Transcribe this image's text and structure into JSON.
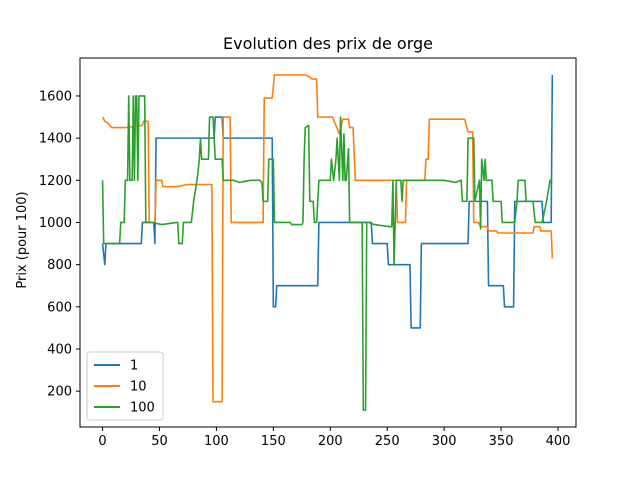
{
  "chart_data": {
    "type": "line",
    "title": "Evolution des prix de orge",
    "xlabel": "",
    "ylabel": "Prix (pour 100)",
    "xlim": [
      -19.8,
      415.8
    ],
    "ylim": [
      30,
      1780
    ],
    "xticks": [
      0,
      50,
      100,
      150,
      200,
      250,
      300,
      350,
      400
    ],
    "yticks": [
      200,
      400,
      600,
      800,
      1000,
      1200,
      1400,
      1600
    ],
    "grid": false,
    "legend_position": "lower-left",
    "series": [
      {
        "name": "1",
        "color": "#1f77b4",
        "points": [
          [
            0,
            900
          ],
          [
            1,
            850
          ],
          [
            2,
            800
          ],
          [
            3,
            900
          ],
          [
            20,
            900
          ],
          [
            34,
            900
          ],
          [
            35,
            1000
          ],
          [
            45,
            1000
          ],
          [
            46,
            900
          ],
          [
            47,
            1400
          ],
          [
            65,
            1400
          ],
          [
            98,
            1400
          ],
          [
            99,
            1500
          ],
          [
            105,
            1500
          ],
          [
            106,
            1400
          ],
          [
            130,
            1400
          ],
          [
            149,
            1400
          ],
          [
            150,
            600
          ],
          [
            152,
            600
          ],
          [
            153,
            700
          ],
          [
            175,
            700
          ],
          [
            189,
            700
          ],
          [
            190,
            1000
          ],
          [
            220,
            1000
          ],
          [
            236,
            1000
          ],
          [
            237,
            900
          ],
          [
            245,
            900
          ],
          [
            250,
            900
          ],
          [
            251,
            800
          ],
          [
            265,
            800
          ],
          [
            270,
            800
          ],
          [
            271,
            500
          ],
          [
            279,
            500
          ],
          [
            280,
            900
          ],
          [
            300,
            900
          ],
          [
            321,
            900
          ],
          [
            322,
            1100
          ],
          [
            335,
            1100
          ],
          [
            338,
            1100
          ],
          [
            339,
            700
          ],
          [
            352,
            700
          ],
          [
            353,
            600
          ],
          [
            360,
            600
          ],
          [
            361,
            600
          ],
          [
            362,
            1100
          ],
          [
            378,
            1100
          ],
          [
            386,
            1100
          ],
          [
            387,
            1000
          ],
          [
            394,
            1000
          ],
          [
            395,
            1700
          ]
        ]
      },
      {
        "name": "10",
        "color": "#ff7f0e",
        "points": [
          [
            0,
            1500
          ],
          [
            2,
            1480
          ],
          [
            5,
            1470
          ],
          [
            8,
            1450
          ],
          [
            20,
            1450
          ],
          [
            35,
            1460
          ],
          [
            36,
            1480
          ],
          [
            40,
            1480
          ],
          [
            41,
            1000
          ],
          [
            45,
            1000
          ],
          [
            46,
            1000
          ],
          [
            47,
            1200
          ],
          [
            52,
            1200
          ],
          [
            53,
            1170
          ],
          [
            65,
            1170
          ],
          [
            75,
            1180
          ],
          [
            94,
            1180
          ],
          [
            96,
            1180
          ],
          [
            97,
            150
          ],
          [
            105,
            150
          ],
          [
            106,
            1500
          ],
          [
            112,
            1500
          ],
          [
            113,
            1000
          ],
          [
            138,
            1000
          ],
          [
            141,
            1000
          ],
          [
            142,
            1590
          ],
          [
            149,
            1590
          ],
          [
            151,
            1700
          ],
          [
            178,
            1700
          ],
          [
            182,
            1690
          ],
          [
            184,
            1680
          ],
          [
            188,
            1680
          ],
          [
            189,
            1500
          ],
          [
            202,
            1500
          ],
          [
            208,
            1420
          ],
          [
            211,
            1490
          ],
          [
            216,
            1490
          ],
          [
            217,
            1450
          ],
          [
            220,
            1450
          ],
          [
            222,
            1200
          ],
          [
            258,
            1200
          ],
          [
            259,
            1000
          ],
          [
            266,
            1000
          ],
          [
            267,
            1200
          ],
          [
            283,
            1200
          ],
          [
            284,
            1300
          ],
          [
            286,
            1300
          ],
          [
            287,
            1490
          ],
          [
            318,
            1490
          ],
          [
            321,
            1430
          ],
          [
            325,
            1430
          ],
          [
            326,
            1000
          ],
          [
            330,
            1000
          ],
          [
            332,
            980
          ],
          [
            338,
            980
          ],
          [
            339,
            960
          ],
          [
            346,
            960
          ],
          [
            347,
            950
          ],
          [
            378,
            950
          ],
          [
            379,
            980
          ],
          [
            384,
            980
          ],
          [
            385,
            960
          ],
          [
            394,
            960
          ],
          [
            395,
            830
          ]
        ]
      },
      {
        "name": "100",
        "color": "#2ca02c",
        "points": [
          [
            0,
            1200
          ],
          [
            1,
            900
          ],
          [
            10,
            900
          ],
          [
            15,
            900
          ],
          [
            16,
            1000
          ],
          [
            19,
            1000
          ],
          [
            20,
            1200
          ],
          [
            22,
            1200
          ],
          [
            23,
            1600
          ],
          [
            24,
            1200
          ],
          [
            26,
            1200
          ],
          [
            27,
            1600
          ],
          [
            28,
            1200
          ],
          [
            29,
            1600
          ],
          [
            30,
            1600
          ],
          [
            31,
            1200
          ],
          [
            32,
            1600
          ],
          [
            37,
            1600
          ],
          [
            38,
            1000
          ],
          [
            43,
            1000
          ],
          [
            52,
            990
          ],
          [
            65,
            1000
          ],
          [
            66,
            1000
          ],
          [
            67,
            900
          ],
          [
            70,
            900
          ],
          [
            71,
            1000
          ],
          [
            75,
            1000
          ],
          [
            78,
            1000
          ],
          [
            80,
            1100
          ],
          [
            83,
            1200
          ],
          [
            85,
            1300
          ],
          [
            86,
            1400
          ],
          [
            87,
            1300
          ],
          [
            93,
            1300
          ],
          [
            94,
            1500
          ],
          [
            97,
            1500
          ],
          [
            99,
            1300
          ],
          [
            100,
            1300
          ],
          [
            104,
            1300
          ],
          [
            105,
            1300
          ],
          [
            106,
            1200
          ],
          [
            110,
            1200
          ],
          [
            115,
            1200
          ],
          [
            120,
            1190
          ],
          [
            130,
            1200
          ],
          [
            138,
            1200
          ],
          [
            140,
            1190
          ],
          [
            141,
            1100
          ],
          [
            145,
            1100
          ],
          [
            146,
            1300
          ],
          [
            150,
            1300
          ],
          [
            151,
            1000
          ],
          [
            165,
            1000
          ],
          [
            166,
            990
          ],
          [
            175,
            990
          ],
          [
            176,
            1000
          ],
          [
            177,
            1300
          ],
          [
            178,
            1450
          ],
          [
            181,
            1460
          ],
          [
            182,
            1100
          ],
          [
            185,
            1100
          ],
          [
            186,
            1000
          ],
          [
            188,
            1000
          ],
          [
            190,
            1200
          ],
          [
            200,
            1200
          ],
          [
            201,
            1300
          ],
          [
            203,
            1200
          ],
          [
            205,
            1300
          ],
          [
            206,
            1400
          ],
          [
            207,
            1300
          ],
          [
            208,
            1200
          ],
          [
            209,
            1500
          ],
          [
            211,
            1200
          ],
          [
            212,
            1420
          ],
          [
            213,
            1200
          ],
          [
            214,
            1200
          ],
          [
            216,
            1350
          ],
          [
            217,
            1000
          ],
          [
            224,
            1000
          ],
          [
            228,
            1000
          ],
          [
            229,
            110
          ],
          [
            231,
            110
          ],
          [
            232,
            1000
          ],
          [
            234,
            1000
          ],
          [
            239,
            990
          ],
          [
            252,
            980
          ],
          [
            254,
            980
          ],
          [
            255,
            1200
          ],
          [
            256,
            800
          ],
          [
            258,
            1200
          ],
          [
            262,
            1200
          ],
          [
            263,
            1100
          ],
          [
            264,
            1200
          ],
          [
            270,
            1200
          ],
          [
            290,
            1200
          ],
          [
            300,
            1200
          ],
          [
            310,
            1190
          ],
          [
            315,
            1200
          ],
          [
            316,
            1100
          ],
          [
            320,
            1100
          ],
          [
            321,
            1400
          ],
          [
            326,
            1400
          ],
          [
            327,
            1100
          ],
          [
            331,
            1200
          ],
          [
            332,
            970
          ],
          [
            333,
            1300
          ],
          [
            335,
            1200
          ],
          [
            336,
            1300
          ],
          [
            337,
            1200
          ],
          [
            342,
            1200
          ],
          [
            343,
            1100
          ],
          [
            350,
            1100
          ],
          [
            351,
            1000
          ],
          [
            362,
            1000
          ],
          [
            364,
            1100
          ],
          [
            365,
            1200
          ],
          [
            371,
            1200
          ],
          [
            372,
            1100
          ],
          [
            378,
            1100
          ],
          [
            380,
            1000
          ],
          [
            386,
            1000
          ],
          [
            390,
            1100
          ],
          [
            393,
            1200
          ],
          [
            395,
            1200
          ]
        ]
      }
    ]
  }
}
